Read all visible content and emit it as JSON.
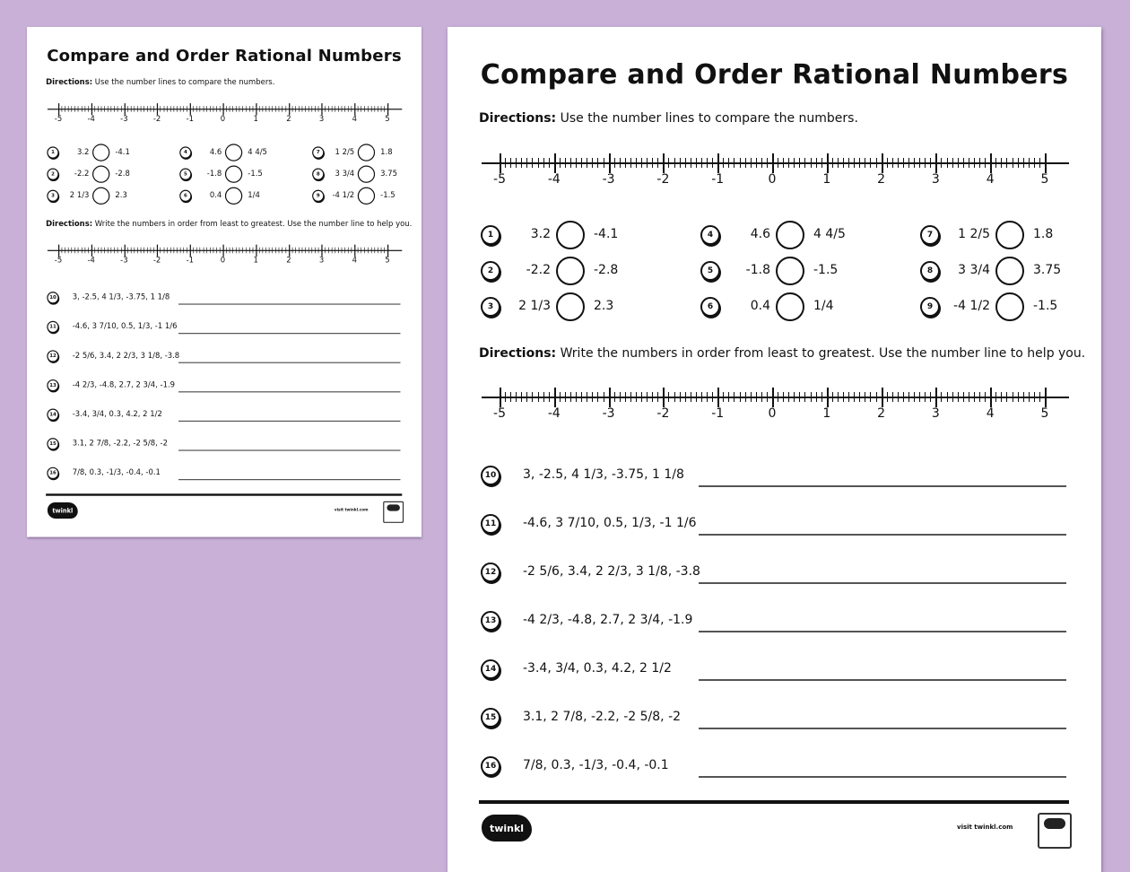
{
  "colors": {
    "background": "#c8b0d7",
    "page": "#ffffff",
    "ink": "#111111"
  },
  "worksheet": {
    "title": "Compare and Order Rational Numbers",
    "directions_1": {
      "label": "Directions:",
      "text": " Use the number lines to compare the numbers."
    },
    "directions_2": {
      "label": "Directions:",
      "text": " Write the numbers in order from least to greatest. Use the number line to help you."
    },
    "number_line": {
      "min": -5,
      "max": 5,
      "subdivisions": 10,
      "labels": [
        "-5",
        "-4",
        "-3",
        "-2",
        "-1",
        "0",
        "1",
        "2",
        "3",
        "4",
        "5"
      ]
    },
    "compare": [
      {
        "num": "1",
        "a": "3.2",
        "b": "-4.1"
      },
      {
        "num": "2",
        "a": "-2.2",
        "b": "-2.8"
      },
      {
        "num": "3",
        "a": "2 1/3",
        "b": "2.3"
      },
      {
        "num": "4",
        "a": "4.6",
        "b": "4 4/5"
      },
      {
        "num": "5",
        "a": "-1.8",
        "b": "-1.5"
      },
      {
        "num": "6",
        "a": "0.4",
        "b": "1/4"
      },
      {
        "num": "7",
        "a": "1 2/5",
        "b": "1.8"
      },
      {
        "num": "8",
        "a": "3 3/4",
        "b": "3.75"
      },
      {
        "num": "9",
        "a": "-4 1/2",
        "b": "-1.5"
      }
    ],
    "order": [
      {
        "num": "10",
        "items": [
          "3",
          "-2.5",
          "4 1/3",
          "-3.75",
          "1 1/8"
        ]
      },
      {
        "num": "11",
        "items": [
          "-4.6",
          "3 7/10",
          "0.5",
          "1/3",
          "-1 1/6"
        ]
      },
      {
        "num": "12",
        "items": [
          "-2 5/6",
          "3.4",
          "2 2/3",
          "3 1/8",
          "-3.8"
        ]
      },
      {
        "num": "13",
        "items": [
          "-4 2/3",
          "-4.8",
          "2.7",
          "2 3/4",
          "-1.9"
        ]
      },
      {
        "num": "14",
        "items": [
          "-3.4",
          "3/4",
          "0.3",
          "4.2",
          "2 1/2"
        ]
      },
      {
        "num": "15",
        "items": [
          "3.1",
          "2 7/8",
          "-2.2",
          "-2 5/8",
          "-2"
        ]
      },
      {
        "num": "16",
        "items": [
          "7/8",
          "0.3",
          "-1/3",
          "-0.4",
          "-0.1"
        ]
      }
    ],
    "footer": {
      "logo": "twinkl",
      "visit": "visit twinkl.com"
    }
  }
}
